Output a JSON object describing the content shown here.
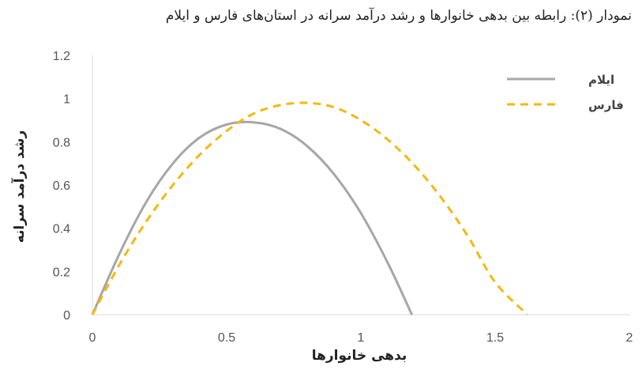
{
  "chart_data": {
    "type": "line",
    "title": "نمودار (۲): رابطه بین بدهی خانوارها و رشد درآمد سرانه در استان‌های فارس و ایلام",
    "xlabel": "بدهی خانوارها",
    "ylabel": "رشد درآمد سرانه",
    "xlim": [
      0,
      2
    ],
    "ylim": [
      0,
      1.2
    ],
    "x_ticks": [
      "0",
      "0.5",
      "1",
      "1.5",
      "2"
    ],
    "y_ticks": [
      "0",
      "0.2",
      "0.4",
      "0.6",
      "0.8",
      "1",
      "1.2"
    ],
    "legend_position": "top-right",
    "grid": false,
    "series": [
      {
        "name": "ایلام",
        "color": "#a6a6a6",
        "style": "solid",
        "x": [
          0,
          0.1,
          0.2,
          0.3,
          0.4,
          0.5,
          0.6,
          0.7,
          0.8,
          0.9,
          1.0,
          1.1,
          1.19
        ],
        "y": [
          0,
          0.28,
          0.52,
          0.7,
          0.82,
          0.88,
          0.89,
          0.86,
          0.78,
          0.65,
          0.47,
          0.24,
          0
        ]
      },
      {
        "name": "فارس",
        "color": "#f2b90f",
        "style": "dashed",
        "x": [
          0,
          0.1,
          0.2,
          0.3,
          0.4,
          0.5,
          0.6,
          0.7,
          0.8,
          0.9,
          1.0,
          1.1,
          1.2,
          1.3,
          1.4,
          1.5,
          1.62
        ],
        "y": [
          0,
          0.23,
          0.43,
          0.6,
          0.74,
          0.85,
          0.93,
          0.97,
          0.98,
          0.96,
          0.9,
          0.81,
          0.69,
          0.54,
          0.36,
          0.15,
          0
        ]
      }
    ]
  }
}
